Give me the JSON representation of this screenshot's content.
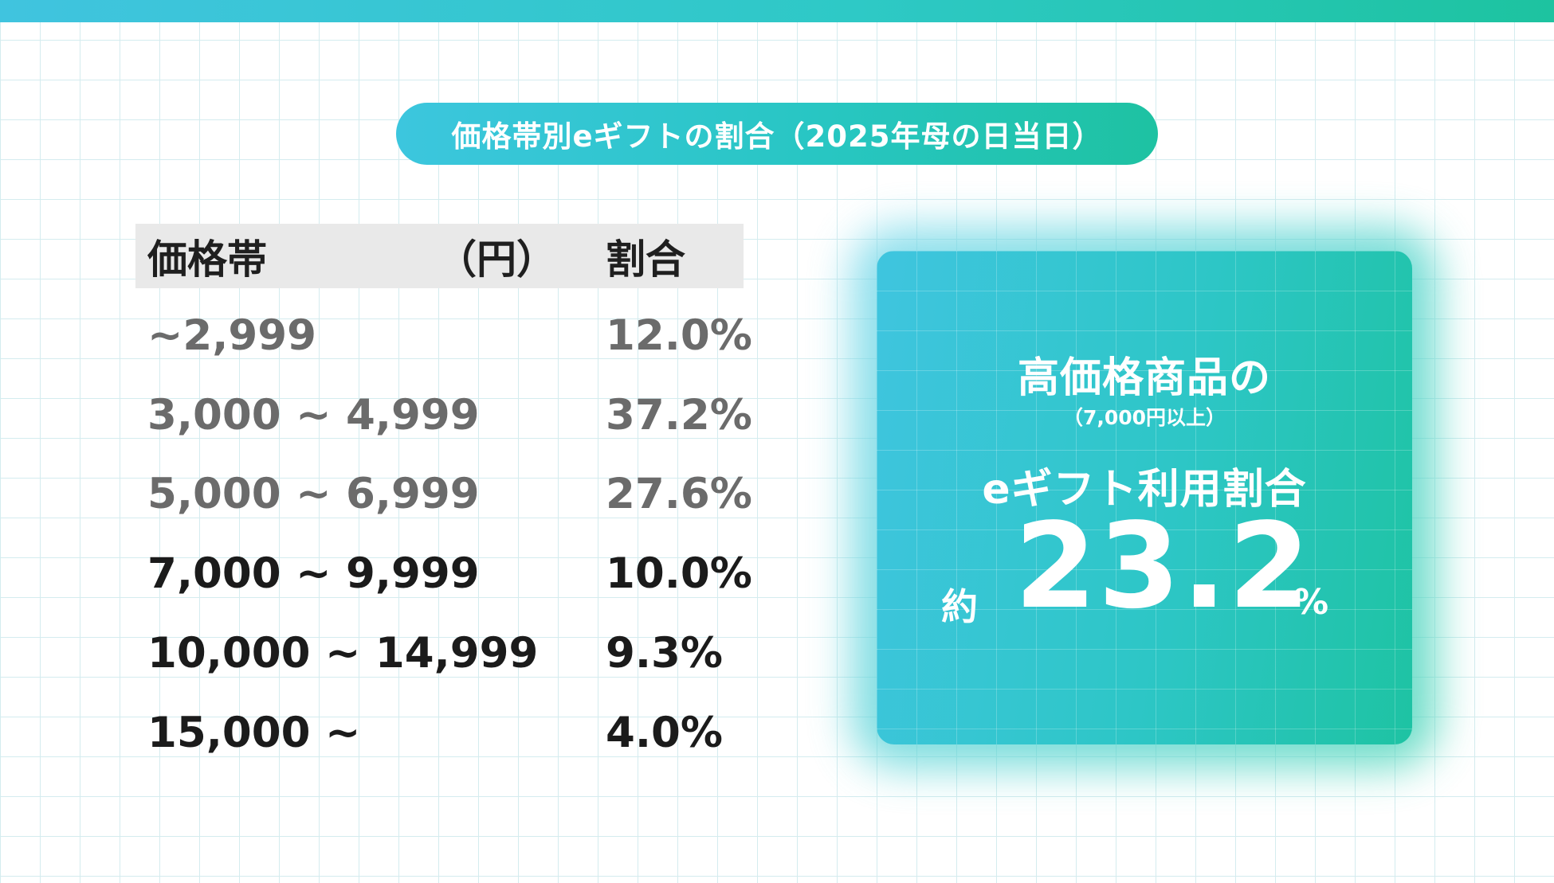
{
  "title": "価格帯別eギフトの割合（2025年母の日当日）",
  "table": {
    "header": {
      "price": "価格帯",
      "unit": "（円）",
      "share": "割合"
    },
    "rows": [
      {
        "range": "~2,999",
        "share": "12.0%"
      },
      {
        "range": "3,000 ~ 4,999",
        "share": "37.2%"
      },
      {
        "range": "5,000 ~ 6,999",
        "share": "27.6%"
      },
      {
        "range": "7,000 ~ 9,999",
        "share": "10.0%"
      },
      {
        "range": "10,000 ~ 14,999",
        "share": "9.3%"
      },
      {
        "range": "15,000 ~",
        "share": "4.0%"
      }
    ]
  },
  "highlight": {
    "line1": "高価格商品の",
    "line2": "（7,000円以上）",
    "line3": "eギフト利用割合",
    "prefix": "約",
    "value": "23.2",
    "unit": "%"
  },
  "colors": {
    "accent_start": "#40c4df",
    "accent_end": "#1dc3a0",
    "muted_text": "#6b6b6b",
    "strong_text": "#1b1b1b",
    "header_bg": "#e9e9e9"
  }
}
